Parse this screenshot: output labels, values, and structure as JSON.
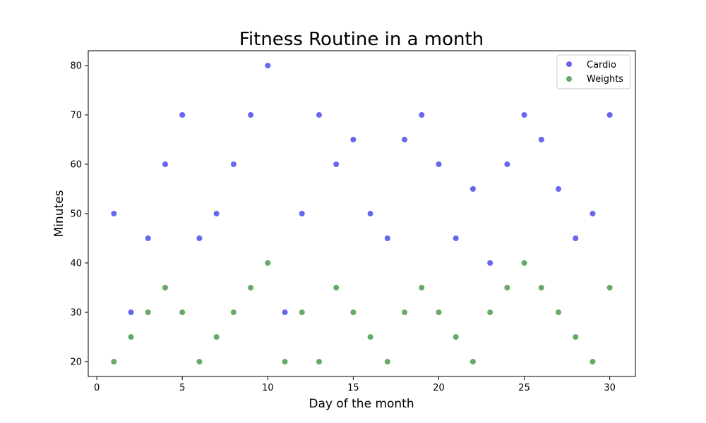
{
  "chart_data": {
    "type": "scatter",
    "title": "Fitness Routine in a month",
    "xlabel": "Day of the month",
    "ylabel": "Minutes",
    "xlim": [
      -0.5,
      31.5
    ],
    "ylim": [
      17,
      83
    ],
    "xticks": [
      0,
      5,
      10,
      15,
      20,
      25,
      30
    ],
    "yticks": [
      20,
      30,
      40,
      50,
      60,
      70,
      80
    ],
    "grid": false,
    "legend_position": "top-right",
    "x": [
      1,
      2,
      3,
      4,
      5,
      6,
      7,
      8,
      9,
      10,
      11,
      12,
      13,
      14,
      15,
      16,
      17,
      18,
      19,
      20,
      21,
      22,
      23,
      24,
      25,
      26,
      27,
      28,
      29,
      30
    ],
    "series": [
      {
        "name": "Cardio",
        "color": "#6666ee",
        "values": [
          50,
          30,
          45,
          60,
          70,
          45,
          50,
          60,
          70,
          80,
          30,
          50,
          70,
          60,
          65,
          50,
          45,
          65,
          70,
          60,
          45,
          55,
          40,
          60,
          70,
          65,
          55,
          45,
          50,
          70
        ]
      },
      {
        "name": "Weights",
        "color": "#66aa66",
        "values": [
          20,
          25,
          30,
          35,
          30,
          20,
          25,
          30,
          35,
          40,
          20,
          30,
          20,
          35,
          30,
          25,
          20,
          30,
          35,
          30,
          25,
          20,
          30,
          35,
          40,
          35,
          30,
          25,
          20,
          35
        ]
      }
    ]
  }
}
